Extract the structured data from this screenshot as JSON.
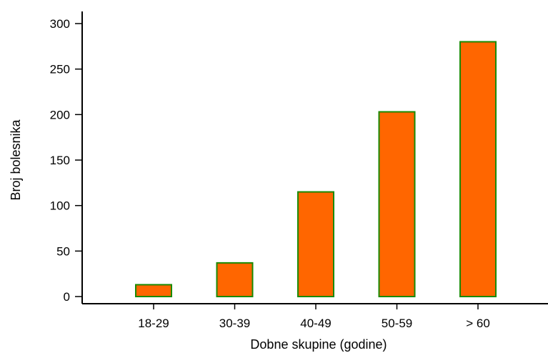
{
  "chart_data": {
    "type": "bar",
    "title": "",
    "xlabel": "Dobne skupine (godine)",
    "ylabel": "Broj bolesnika",
    "categories": [
      "18-29",
      "30-39",
      "40-49",
      "50-59",
      "> 60"
    ],
    "values": [
      13,
      37,
      115,
      203,
      280
    ],
    "ylim": [
      0,
      300
    ],
    "yticks": [
      0,
      50,
      100,
      150,
      200,
      250,
      300
    ],
    "grid": false,
    "legend": "none",
    "bar_fill_color": "#ff6600",
    "bar_edge_color": "#1a8a00"
  }
}
